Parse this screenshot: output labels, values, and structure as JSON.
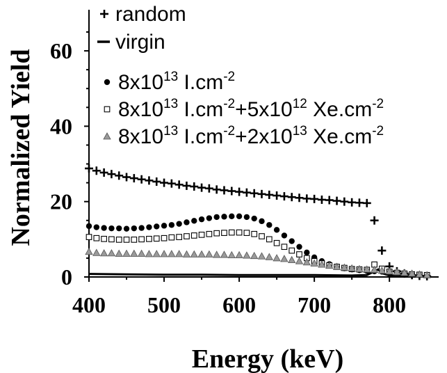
{
  "chart_data": {
    "type": "scatter",
    "xlabel": "Energy (keV)",
    "ylabel": "Normalized Yield",
    "xlim": [
      400,
      860
    ],
    "ylim": [
      0,
      65
    ],
    "xticks": [
      "400",
      "500",
      "600",
      "700",
      "800"
    ],
    "yticks": [
      "0",
      "20",
      "40",
      "60"
    ],
    "legend_position": "top-left",
    "series": [
      {
        "name": "random",
        "marker": "plus",
        "color": "#000000",
        "x": [
          400,
          410,
          420,
          430,
          440,
          450,
          460,
          470,
          480,
          490,
          500,
          510,
          520,
          530,
          540,
          550,
          560,
          570,
          580,
          590,
          600,
          610,
          620,
          630,
          640,
          650,
          660,
          670,
          680,
          690,
          700,
          710,
          720,
          730,
          740,
          750,
          760,
          770,
          780,
          790,
          800,
          810,
          820,
          830,
          840,
          850
        ],
        "y": [
          28.8,
          28.2,
          27.7,
          27.3,
          26.9,
          26.5,
          26.2,
          25.9,
          25.6,
          25.3,
          25.0,
          24.8,
          24.5,
          24.2,
          24.0,
          23.7,
          23.5,
          23.2,
          23.0,
          22.8,
          22.6,
          22.4,
          22.2,
          22.0,
          21.8,
          21.6,
          21.4,
          21.2,
          21.0,
          20.8,
          20.7,
          20.5,
          20.4,
          20.2,
          20.0,
          19.8,
          19.7,
          19.6,
          15.0,
          7.0,
          2.8,
          1.5,
          0.9,
          0.5,
          0.3,
          0.2
        ]
      },
      {
        "name": "virgin",
        "marker": "line",
        "color": "#000000",
        "x": [
          400,
          450,
          500,
          550,
          600,
          650,
          700,
          750,
          770,
          780,
          785,
          790,
          800,
          820,
          850
        ],
        "y": [
          0.8,
          0.7,
          0.6,
          0.6,
          0.5,
          0.5,
          0.5,
          0.4,
          0.5,
          1.5,
          2.0,
          1.0,
          0.4,
          0.3,
          0.2
        ]
      },
      {
        "name": "8x10^13 I.cm^-2",
        "marker": "filled-circle",
        "color": "#000000",
        "x": [
          400,
          410,
          420,
          430,
          440,
          450,
          460,
          470,
          480,
          490,
          500,
          510,
          520,
          530,
          540,
          550,
          560,
          570,
          580,
          590,
          600,
          610,
          620,
          630,
          640,
          650,
          660,
          670,
          680,
          690,
          700,
          710,
          720,
          730,
          740,
          750,
          760,
          770,
          780,
          790,
          800,
          810,
          820,
          830,
          840,
          850
        ],
        "y": [
          13.5,
          13.2,
          13.0,
          12.9,
          12.9,
          12.8,
          12.9,
          13.0,
          13.2,
          13.4,
          13.6,
          13.8,
          14.1,
          14.5,
          14.9,
          15.3,
          15.6,
          15.9,
          16.0,
          16.1,
          16.1,
          15.9,
          15.5,
          14.8,
          13.8,
          12.5,
          11.0,
          9.5,
          8.0,
          6.5,
          5.2,
          4.2,
          3.4,
          2.8,
          2.3,
          2.0,
          1.8,
          1.6,
          1.5,
          1.4,
          1.2,
          1.0,
          0.8,
          0.6,
          0.5,
          0.4
        ]
      },
      {
        "name": "8x10^13 I.cm^-2+5x10^12 Xe.cm^-2",
        "marker": "open-square",
        "color": "#000000",
        "x": [
          400,
          410,
          420,
          430,
          440,
          450,
          460,
          470,
          480,
          490,
          500,
          510,
          520,
          530,
          540,
          550,
          560,
          570,
          580,
          590,
          600,
          610,
          620,
          630,
          640,
          650,
          660,
          670,
          680,
          690,
          700,
          710,
          720,
          730,
          740,
          750,
          760,
          770,
          780,
          790,
          800,
          810,
          820,
          830,
          840,
          850
        ],
        "y": [
          10.6,
          10.3,
          10.1,
          10.0,
          9.9,
          9.9,
          9.9,
          10.0,
          10.1,
          10.2,
          10.3,
          10.5,
          10.6,
          10.8,
          11.0,
          11.2,
          11.4,
          11.6,
          11.7,
          11.8,
          11.8,
          11.7,
          11.4,
          10.8,
          10.0,
          9.0,
          8.0,
          7.0,
          6.0,
          5.0,
          4.2,
          3.6,
          3.1,
          2.7,
          2.4,
          2.1,
          2.0,
          1.9,
          3.3,
          2.2,
          1.4,
          1.1,
          0.9,
          0.7,
          0.6,
          0.5
        ]
      },
      {
        "name": "8x10^13 I.cm^-2+2x10^13 Xe.cm^-2",
        "marker": "gray-triangle",
        "color": "#8c8c8c",
        "x": [
          400,
          410,
          420,
          430,
          440,
          450,
          460,
          470,
          480,
          490,
          500,
          510,
          520,
          530,
          540,
          550,
          560,
          570,
          580,
          590,
          600,
          610,
          620,
          630,
          640,
          650,
          660,
          670,
          680,
          690,
          700,
          710,
          720,
          730,
          740,
          750,
          760,
          770,
          780,
          790,
          800,
          810,
          820,
          830,
          840,
          850
        ],
        "y": [
          6.7,
          6.4,
          6.3,
          6.3,
          6.2,
          6.2,
          6.2,
          6.2,
          6.1,
          6.1,
          6.1,
          6.1,
          6.1,
          6.0,
          6.0,
          6.0,
          6.0,
          5.9,
          5.9,
          5.8,
          5.8,
          5.7,
          5.6,
          5.5,
          5.3,
          5.0,
          4.8,
          4.5,
          4.2,
          3.9,
          3.6,
          3.3,
          3.0,
          2.7,
          2.5,
          2.3,
          2.1,
          2.0,
          1.9,
          1.7,
          1.5,
          1.3,
          1.1,
          0.9,
          0.7,
          0.5
        ]
      }
    ]
  },
  "legend": [
    {
      "marker": "plus",
      "text": "random"
    },
    {
      "marker": "line",
      "text": "virgin"
    },
    {
      "marker": "filled-circle",
      "p1": "8x10",
      "s1": "13",
      "p2": " I.cm",
      "s2": "-2"
    },
    {
      "marker": "open-square",
      "p1": "8x10",
      "s1": "13",
      "p2": " I.cm",
      "s2": "-2",
      "p3": "+5x10",
      "s3": "12",
      "p4": " Xe.cm",
      "s4": "-2"
    },
    {
      "marker": "gray-triangle",
      "p1": "8x10",
      "s1": "13",
      "p2": " I.cm",
      "s2": "-2",
      "p3": "+2x10",
      "s3": "13",
      "p4": " Xe.cm",
      "s4": "-2"
    }
  ]
}
